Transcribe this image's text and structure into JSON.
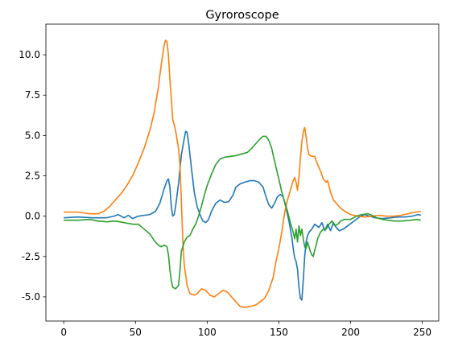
{
  "chart_data": {
    "type": "line",
    "title": "Gyroroscope",
    "xlabel": "",
    "ylabel": "",
    "xlim": [
      -12.45,
      261.45
    ],
    "ylim": [
      -6.5,
      11.9
    ],
    "grid": false,
    "legend": "none",
    "x_ticks": [
      0,
      50,
      100,
      150,
      200,
      250
    ],
    "x_tick_labels": [
      "0",
      "50",
      "100",
      "150",
      "200",
      "250"
    ],
    "y_ticks": [
      -5.0,
      -2.5,
      0.0,
      2.5,
      5.0,
      7.5,
      10.0
    ],
    "y_tick_labels": [
      "-5.0",
      "-2.5",
      "0.0",
      "2.5",
      "5.0",
      "7.5",
      "10.0"
    ],
    "series": [
      {
        "color": "#1f77b4",
        "points": [
          [
            0,
            -0.1
          ],
          [
            10,
            -0.05
          ],
          [
            20,
            -0.1
          ],
          [
            30,
            -0.1
          ],
          [
            35,
            0.0
          ],
          [
            38,
            0.1
          ],
          [
            42,
            -0.1
          ],
          [
            45,
            0.05
          ],
          [
            48,
            -0.15
          ],
          [
            52,
            0.0
          ],
          [
            56,
            0.05
          ],
          [
            60,
            0.1
          ],
          [
            64,
            0.3
          ],
          [
            67,
            0.8
          ],
          [
            70,
            1.7
          ],
          [
            72,
            2.2
          ],
          [
            73,
            2.3
          ],
          [
            74,
            1.8
          ],
          [
            75,
            0.6
          ],
          [
            76,
            0.0
          ],
          [
            77,
            0.1
          ],
          [
            78,
            0.6
          ],
          [
            80,
            2.0
          ],
          [
            82,
            3.8
          ],
          [
            84,
            4.8
          ],
          [
            85,
            5.25
          ],
          [
            86,
            5.2
          ],
          [
            87,
            4.6
          ],
          [
            89,
            3.0
          ],
          [
            91,
            1.5
          ],
          [
            93,
            0.6
          ],
          [
            95,
            0.1
          ],
          [
            97,
            -0.3
          ],
          [
            99,
            -0.4
          ],
          [
            101,
            -0.2
          ],
          [
            103,
            0.3
          ],
          [
            106,
            0.8
          ],
          [
            109,
            1.0
          ],
          [
            112,
            0.85
          ],
          [
            115,
            0.9
          ],
          [
            118,
            1.3
          ],
          [
            120,
            1.8
          ],
          [
            123,
            2.0
          ],
          [
            126,
            2.1
          ],
          [
            130,
            2.2
          ],
          [
            133,
            2.2
          ],
          [
            136,
            2.1
          ],
          [
            139,
            1.8
          ],
          [
            141,
            1.2
          ],
          [
            143,
            0.7
          ],
          [
            145,
            0.5
          ],
          [
            147,
            0.8
          ],
          [
            149,
            1.2
          ],
          [
            151,
            1.35
          ],
          [
            153,
            1.2
          ],
          [
            155,
            0.5
          ],
          [
            157,
            -0.3
          ],
          [
            159,
            -1.3
          ],
          [
            160,
            -2.0
          ],
          [
            161,
            -2.6
          ],
          [
            162,
            -2.8
          ],
          [
            163,
            -3.3
          ],
          [
            164,
            -4.4
          ],
          [
            165,
            -5.1
          ],
          [
            166,
            -5.2
          ],
          [
            167,
            -4.0
          ],
          [
            168,
            -2.5
          ],
          [
            169,
            -1.6
          ],
          [
            170,
            -1.2
          ],
          [
            171,
            -1.0
          ],
          [
            172,
            -0.9
          ],
          [
            173,
            -0.8
          ],
          [
            175,
            -0.5
          ],
          [
            178,
            -0.7
          ],
          [
            180,
            -0.4
          ],
          [
            182,
            -0.9
          ],
          [
            184,
            -0.5
          ],
          [
            186,
            -0.9
          ],
          [
            188,
            -0.4
          ],
          [
            190,
            -0.7
          ],
          [
            192,
            -0.9
          ],
          [
            195,
            -0.8
          ],
          [
            198,
            -0.6
          ],
          [
            201,
            -0.4
          ],
          [
            204,
            -0.2
          ],
          [
            207,
            0.0
          ],
          [
            210,
            0.1
          ],
          [
            213,
            0.0
          ],
          [
            217,
            -0.1
          ],
          [
            222,
            -0.15
          ],
          [
            228,
            -0.1
          ],
          [
            233,
            -0.05
          ],
          [
            238,
            -0.05
          ],
          [
            243,
            0.0
          ],
          [
            247,
            0.1
          ],
          [
            249,
            0.05
          ]
        ]
      },
      {
        "color": "#ff7f0e",
        "points": [
          [
            0,
            0.25
          ],
          [
            10,
            0.25
          ],
          [
            18,
            0.15
          ],
          [
            24,
            0.15
          ],
          [
            28,
            0.3
          ],
          [
            32,
            0.6
          ],
          [
            36,
            1.0
          ],
          [
            40,
            1.4
          ],
          [
            44,
            1.9
          ],
          [
            48,
            2.5
          ],
          [
            52,
            3.3
          ],
          [
            56,
            4.2
          ],
          [
            60,
            5.3
          ],
          [
            63,
            6.4
          ],
          [
            66,
            8.0
          ],
          [
            68,
            9.4
          ],
          [
            70,
            10.6
          ],
          [
            71,
            10.9
          ],
          [
            72,
            10.8
          ],
          [
            73,
            10.0
          ],
          [
            74,
            8.5
          ],
          [
            75,
            7.3
          ],
          [
            76,
            6.0
          ],
          [
            78,
            5.3
          ],
          [
            80,
            4.2
          ],
          [
            81,
            3.2
          ],
          [
            82,
            1.0
          ],
          [
            83,
            -1.5
          ],
          [
            84,
            -3.0
          ],
          [
            86,
            -4.3
          ],
          [
            88,
            -4.8
          ],
          [
            91,
            -4.9
          ],
          [
            93,
            -4.8
          ],
          [
            96,
            -4.5
          ],
          [
            99,
            -4.6
          ],
          [
            102,
            -4.9
          ],
          [
            105,
            -5.0
          ],
          [
            108,
            -4.8
          ],
          [
            111,
            -4.6
          ],
          [
            114,
            -4.7
          ],
          [
            117,
            -5.0
          ],
          [
            120,
            -5.3
          ],
          [
            123,
            -5.6
          ],
          [
            126,
            -5.65
          ],
          [
            130,
            -5.6
          ],
          [
            134,
            -5.5
          ],
          [
            137,
            -5.3
          ],
          [
            140,
            -5.1
          ],
          [
            143,
            -4.6
          ],
          [
            146,
            -3.8
          ],
          [
            148,
            -2.8
          ],
          [
            150,
            -2.0
          ],
          [
            152,
            -1.0
          ],
          [
            154,
            0.2
          ],
          [
            156,
            1.0
          ],
          [
            158,
            1.6
          ],
          [
            160,
            2.2
          ],
          [
            161,
            2.4
          ],
          [
            162,
            2.1
          ],
          [
            163,
            1.6
          ],
          [
            164,
            2.4
          ],
          [
            165,
            3.6
          ],
          [
            166,
            4.6
          ],
          [
            167,
            5.2
          ],
          [
            168,
            5.5
          ],
          [
            169,
            4.9
          ],
          [
            170,
            4.2
          ],
          [
            171,
            3.8
          ],
          [
            173,
            3.7
          ],
          [
            175,
            3.7
          ],
          [
            177,
            3.2
          ],
          [
            179,
            2.8
          ],
          [
            181,
            2.3
          ],
          [
            183,
            2.1
          ],
          [
            184,
            2.2
          ],
          [
            186,
            1.5
          ],
          [
            188,
            1.0
          ],
          [
            190,
            0.8
          ],
          [
            193,
            0.5
          ],
          [
            196,
            0.3
          ],
          [
            200,
            0.1
          ],
          [
            205,
            0.0
          ],
          [
            210,
            -0.05
          ],
          [
            215,
            0.0
          ],
          [
            220,
            0.05
          ],
          [
            225,
            0.0
          ],
          [
            230,
            0.0
          ],
          [
            235,
            0.05
          ],
          [
            240,
            0.15
          ],
          [
            245,
            0.25
          ],
          [
            249,
            0.3
          ]
        ]
      },
      {
        "color": "#2ca02c",
        "points": [
          [
            0,
            -0.25
          ],
          [
            10,
            -0.25
          ],
          [
            18,
            -0.2
          ],
          [
            24,
            -0.3
          ],
          [
            30,
            -0.35
          ],
          [
            36,
            -0.3
          ],
          [
            42,
            -0.4
          ],
          [
            48,
            -0.5
          ],
          [
            52,
            -0.5
          ],
          [
            56,
            -0.8
          ],
          [
            60,
            -1.1
          ],
          [
            63,
            -1.5
          ],
          [
            66,
            -1.8
          ],
          [
            68,
            -1.9
          ],
          [
            70,
            -1.8
          ],
          [
            72,
            -1.9
          ],
          [
            73,
            -2.4
          ],
          [
            74,
            -3.3
          ],
          [
            75,
            -4.0
          ],
          [
            76,
            -4.4
          ],
          [
            78,
            -4.5
          ],
          [
            80,
            -4.3
          ],
          [
            81,
            -3.4
          ],
          [
            82,
            -2.2
          ],
          [
            84,
            -1.6
          ],
          [
            86,
            -1.3
          ],
          [
            88,
            -1.2
          ],
          [
            90,
            -0.8
          ],
          [
            92,
            -0.5
          ],
          [
            94,
            0.0
          ],
          [
            96,
            0.6
          ],
          [
            98,
            1.3
          ],
          [
            100,
            1.9
          ],
          [
            103,
            2.6
          ],
          [
            106,
            3.2
          ],
          [
            109,
            3.55
          ],
          [
            112,
            3.65
          ],
          [
            116,
            3.7
          ],
          [
            120,
            3.75
          ],
          [
            124,
            3.85
          ],
          [
            128,
            3.95
          ],
          [
            131,
            4.2
          ],
          [
            134,
            4.5
          ],
          [
            137,
            4.8
          ],
          [
            139,
            4.95
          ],
          [
            141,
            4.95
          ],
          [
            143,
            4.7
          ],
          [
            145,
            4.2
          ],
          [
            147,
            3.4
          ],
          [
            150,
            2.3
          ],
          [
            152,
            1.5
          ],
          [
            154,
            0.9
          ],
          [
            156,
            0.3
          ],
          [
            158,
            -0.4
          ],
          [
            160,
            -1.0
          ],
          [
            161,
            -1.4
          ],
          [
            162,
            -0.8
          ],
          [
            163,
            -1.6
          ],
          [
            164,
            -0.6
          ],
          [
            165,
            -1.2
          ],
          [
            166,
            -0.8
          ],
          [
            167,
            -1.4
          ],
          [
            168,
            -1.9
          ],
          [
            169,
            -2.0
          ],
          [
            170,
            -1.6
          ],
          [
            171,
            -1.9
          ],
          [
            172,
            -2.2
          ],
          [
            173,
            -2.4
          ],
          [
            174,
            -2.5
          ],
          [
            175,
            -2.1
          ],
          [
            176,
            -1.8
          ],
          [
            177,
            -1.4
          ],
          [
            179,
            -1.0
          ],
          [
            181,
            -0.8
          ],
          [
            183,
            -0.8
          ],
          [
            185,
            -0.5
          ],
          [
            187,
            -0.3
          ],
          [
            189,
            -0.6
          ],
          [
            191,
            -0.5
          ],
          [
            193,
            -0.3
          ],
          [
            196,
            -0.2
          ],
          [
            200,
            -0.2
          ],
          [
            204,
            0.0
          ],
          [
            208,
            0.1
          ],
          [
            212,
            0.15
          ],
          [
            215,
            0.05
          ],
          [
            218,
            -0.1
          ],
          [
            222,
            -0.2
          ],
          [
            226,
            -0.25
          ],
          [
            230,
            -0.3
          ],
          [
            236,
            -0.3
          ],
          [
            242,
            -0.25
          ],
          [
            246,
            -0.2
          ],
          [
            249,
            -0.25
          ]
        ]
      }
    ]
  }
}
